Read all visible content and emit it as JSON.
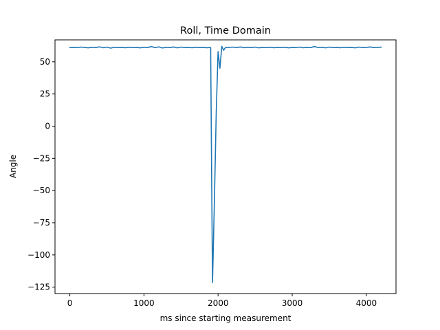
{
  "chart_data": {
    "type": "line",
    "title": "Roll, Time Domain",
    "xlabel": "ms since starting measurement",
    "ylabel": "Angle",
    "xlim": [
      -200,
      4400
    ],
    "ylim": [
      -130,
      67
    ],
    "xticks": [
      0,
      1000,
      2000,
      3000,
      4000
    ],
    "yticks": [
      -125,
      -100,
      -75,
      -50,
      -25,
      0,
      25,
      50
    ],
    "xtick_labels": [
      "0",
      "1000",
      "2000",
      "3000",
      "4000"
    ],
    "ytick_labels": [
      "−125",
      "−100",
      "−75",
      "−50",
      "−25",
      "0",
      "25",
      "50"
    ],
    "grid": false,
    "series": [
      {
        "color": "#1f77b4",
        "x": [
          0,
          50,
          100,
          150,
          200,
          250,
          300,
          350,
          400,
          450,
          500,
          550,
          600,
          650,
          700,
          750,
          800,
          850,
          900,
          950,
          1000,
          1050,
          1100,
          1150,
          1200,
          1250,
          1300,
          1350,
          1400,
          1450,
          1500,
          1550,
          1600,
          1650,
          1700,
          1750,
          1800,
          1850,
          1880,
          1900,
          1925,
          1950,
          1975,
          2000,
          2025,
          2050,
          2075,
          2100,
          2150,
          2200,
          2250,
          2300,
          2350,
          2400,
          2450,
          2500,
          2550,
          2600,
          2650,
          2700,
          2750,
          2800,
          2850,
          2900,
          2950,
          3000,
          3050,
          3100,
          3150,
          3200,
          3250,
          3300,
          3350,
          3400,
          3450,
          3500,
          3550,
          3600,
          3650,
          3700,
          3750,
          3800,
          3850,
          3900,
          3950,
          4000,
          4050,
          4100,
          4150,
          4200
        ],
        "y": [
          61,
          61.2,
          61,
          61.4,
          61.2,
          60.8,
          61.3,
          61,
          61.6,
          60.9,
          61.4,
          60.6,
          61.3,
          61,
          61.2,
          60.9,
          61.3,
          61,
          61.2,
          60.8,
          61.3,
          61,
          61.8,
          60.9,
          61.6,
          60.7,
          61.3,
          61,
          61.5,
          60.8,
          61.4,
          61,
          61.2,
          60.9,
          61.3,
          61,
          61.2,
          60.9,
          61,
          61,
          -121.5,
          -60,
          10,
          58,
          45,
          62,
          59,
          61,
          61.2,
          61.4,
          61,
          61.5,
          60.9,
          61.3,
          61,
          61.4,
          60.8,
          61.2,
          61,
          61.3,
          60.9,
          61.2,
          61,
          61.3,
          60.8,
          61.1,
          61,
          61.4,
          60.9,
          61.2,
          61,
          61.8,
          61.1,
          61.3,
          60.8,
          61.4,
          61,
          61.2,
          60.9,
          61.3,
          61,
          61.2,
          60.8,
          61.4,
          61,
          61.2,
          61.5,
          61,
          61.1,
          61.4
        ]
      }
    ]
  }
}
